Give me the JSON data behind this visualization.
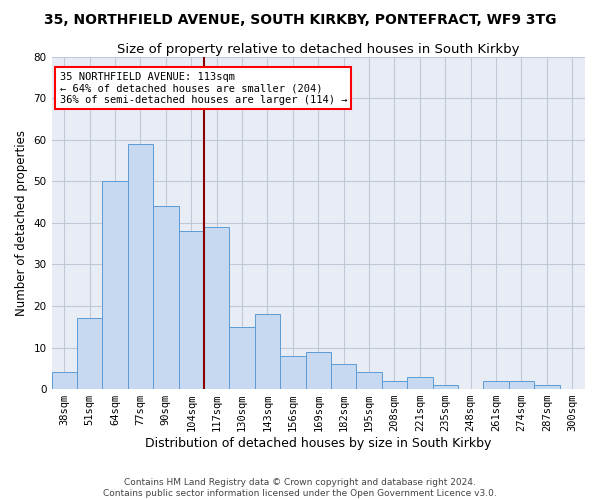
{
  "title": "35, NORTHFIELD AVENUE, SOUTH KIRKBY, PONTEFRACT, WF9 3TG",
  "subtitle": "Size of property relative to detached houses in South Kirkby",
  "xlabel": "Distribution of detached houses by size in South Kirkby",
  "ylabel": "Number of detached properties",
  "categories": [
    "38sqm",
    "51sqm",
    "64sqm",
    "77sqm",
    "90sqm",
    "104sqm",
    "117sqm",
    "130sqm",
    "143sqm",
    "156sqm",
    "169sqm",
    "182sqm",
    "195sqm",
    "208sqm",
    "221sqm",
    "235sqm",
    "248sqm",
    "261sqm",
    "274sqm",
    "287sqm",
    "300sqm"
  ],
  "bar_values": [
    4,
    17,
    50,
    59,
    44,
    38,
    39,
    15,
    18,
    8,
    9,
    6,
    4,
    2,
    3,
    1,
    0,
    2,
    2,
    1,
    0
  ],
  "bar_color": "#c6d9f0",
  "bar_edge_color": "#5b9bd5",
  "vline_color": "#8b0000",
  "annotation_line1": "35 NORTHFIELD AVENUE: 113sqm",
  "annotation_line2": "← 64% of detached houses are smaller (204)",
  "annotation_line3": "36% of semi-detached houses are larger (114) →",
  "annotation_box_color": "white",
  "annotation_box_edge_color": "red",
  "ylim": [
    0,
    80
  ],
  "yticks": [
    0,
    10,
    20,
    30,
    40,
    50,
    60,
    70,
    80
  ],
  "grid_color": "#c0c8d8",
  "background_color": "#e8edf5",
  "footer1": "Contains HM Land Registry data © Crown copyright and database right 2024.",
  "footer2": "Contains public sector information licensed under the Open Government Licence v3.0.",
  "title_fontsize": 10,
  "subtitle_fontsize": 9.5,
  "xlabel_fontsize": 9,
  "ylabel_fontsize": 8.5,
  "tick_fontsize": 7.5,
  "annotation_fontsize": 7.5,
  "footer_fontsize": 6.5
}
